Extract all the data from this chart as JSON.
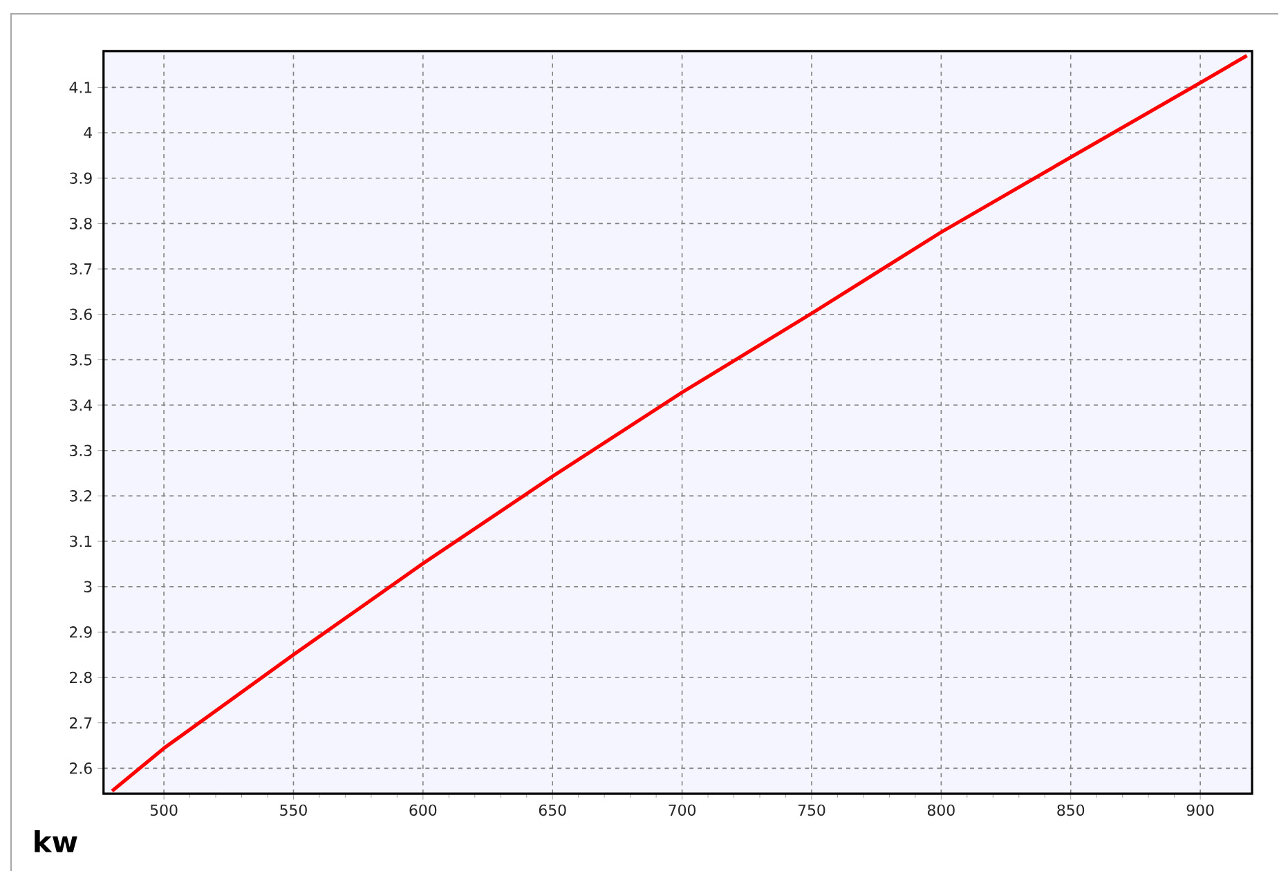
{
  "chart_data": {
    "type": "line",
    "xlabel": "kw",
    "x": [
      480,
      500,
      550,
      600,
      650,
      700,
      750,
      800,
      850,
      900,
      918
    ],
    "series": [
      {
        "color": "#ff0000",
        "values": [
          2.55,
          2.644,
          2.85,
          3.051,
          3.243,
          3.428,
          3.602,
          3.781,
          3.946,
          4.11,
          4.17
        ]
      }
    ],
    "xlim": [
      476.7,
      920
    ],
    "ylim": [
      2.544,
      4.18
    ],
    "xticks": [
      500,
      550,
      600,
      650,
      700,
      750,
      800,
      850,
      900
    ],
    "yticks": [
      2.6,
      2.7,
      2.8,
      2.9,
      3,
      3.1,
      3.2,
      3.3,
      3.4,
      3.5,
      3.6,
      3.7,
      3.8,
      3.9,
      4,
      4.1
    ],
    "grid": true,
    "legend": false,
    "marker": "none",
    "line_style": "solid"
  }
}
